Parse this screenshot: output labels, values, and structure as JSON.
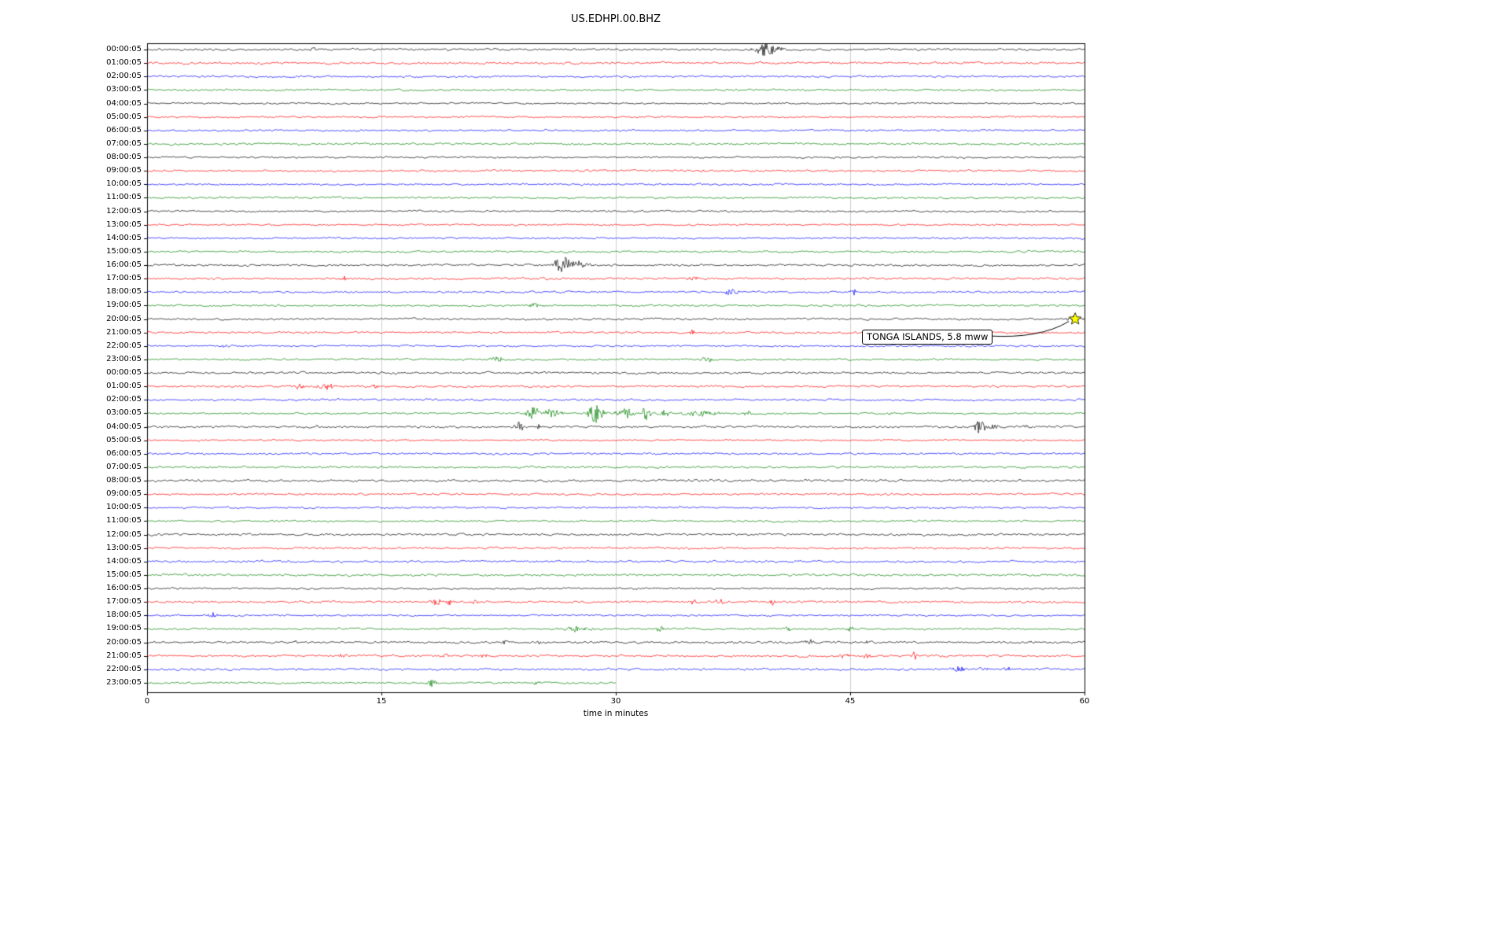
{
  "chart_data": {
    "type": "line",
    "subtype": "seismogram-dayplot",
    "title": "US.EDHPI.00.BHZ",
    "xlabel": "time in minutes",
    "x_range": [
      0,
      60
    ],
    "x_ticks": [
      0,
      15,
      30,
      45,
      60
    ],
    "grid": true,
    "events_format": "[minute, peak_amplitude_px, duration_minutes]",
    "trace_colors": {
      "black": "#000000",
      "red": "#ff0000",
      "blue": "#0000ff",
      "green": "#008000"
    },
    "annotation": {
      "text": "TONGA ISLANDS, 5.8 mww",
      "row_index": 20,
      "row_label": "20:00:05",
      "minute": 59.4,
      "marker": "star",
      "marker_color": "#ffff00"
    },
    "rows": [
      {
        "label": "00:00:05",
        "color": "black",
        "events": [
          [
            10.6,
            5,
            0.25
          ],
          [
            39.6,
            9,
            0.9
          ],
          [
            40.5,
            4,
            0.4
          ]
        ]
      },
      {
        "label": "01:00:05",
        "color": "red",
        "events": []
      },
      {
        "label": "02:00:05",
        "color": "blue",
        "events": []
      },
      {
        "label": "03:00:05",
        "color": "green",
        "events": []
      },
      {
        "label": "04:00:05",
        "color": "black",
        "events": []
      },
      {
        "label": "05:00:05",
        "color": "red",
        "events": []
      },
      {
        "label": "06:00:05",
        "color": "blue",
        "events": []
      },
      {
        "label": "07:00:05",
        "color": "green",
        "events": []
      },
      {
        "label": "08:00:05",
        "color": "black",
        "events": []
      },
      {
        "label": "09:00:05",
        "color": "red",
        "events": [
          [
            35.5,
            2,
            0.2
          ]
        ]
      },
      {
        "label": "10:00:05",
        "color": "blue",
        "events": []
      },
      {
        "label": "11:00:05",
        "color": "green",
        "events": []
      },
      {
        "label": "12:00:05",
        "color": "black",
        "events": []
      },
      {
        "label": "13:00:05",
        "color": "red",
        "events": []
      },
      {
        "label": "14:00:05",
        "color": "blue",
        "events": []
      },
      {
        "label": "15:00:05",
        "color": "green",
        "events": []
      },
      {
        "label": "16:00:05",
        "color": "black",
        "events": [
          [
            26.6,
            11,
            0.7
          ],
          [
            27.6,
            5,
            0.9
          ]
        ]
      },
      {
        "label": "17:00:05",
        "color": "red",
        "events": [
          [
            12.6,
            4,
            0.2
          ],
          [
            35.0,
            2.5,
            0.6
          ]
        ]
      },
      {
        "label": "18:00:05",
        "color": "blue",
        "events": [
          [
            37.4,
            4,
            0.6
          ],
          [
            45.2,
            7,
            0.12
          ]
        ]
      },
      {
        "label": "19:00:05",
        "color": "green",
        "events": [
          [
            24.8,
            3,
            0.7
          ]
        ]
      },
      {
        "label": "20:00:05",
        "color": "black",
        "events": [
          [
            59.3,
            4,
            0.6
          ]
        ]
      },
      {
        "label": "21:00:05",
        "color": "red",
        "events": [
          [
            28.5,
            3.5,
            0.25
          ],
          [
            34.9,
            3,
            0.25
          ]
        ]
      },
      {
        "label": "22:00:05",
        "color": "blue",
        "events": [
          [
            5.0,
            2.5,
            0.4
          ]
        ]
      },
      {
        "label": "23:00:05",
        "color": "green",
        "events": [
          [
            22.3,
            3.5,
            0.7
          ],
          [
            35.9,
            4,
            0.6
          ]
        ]
      },
      {
        "label": "00:00:05",
        "color": "black",
        "events": [
          [
            16.0,
            2,
            0.3
          ]
        ]
      },
      {
        "label": "01:00:05",
        "color": "red",
        "events": [
          [
            9.8,
            4,
            0.5
          ],
          [
            11.4,
            4.5,
            0.7
          ],
          [
            14.6,
            2.5,
            0.3
          ]
        ]
      },
      {
        "label": "02:00:05",
        "color": "blue",
        "events": []
      },
      {
        "label": "03:00:05",
        "color": "green",
        "events": [
          [
            24.7,
            9,
            0.6
          ],
          [
            25.9,
            6,
            0.8
          ],
          [
            28.7,
            12,
            0.7
          ],
          [
            30.6,
            7,
            0.8
          ],
          [
            31.9,
            8,
            0.5
          ],
          [
            33.1,
            5,
            0.5
          ],
          [
            35.5,
            3,
            1.5
          ],
          [
            38.4,
            3,
            0.4
          ],
          [
            47.6,
            2.5,
            0.4
          ]
        ]
      },
      {
        "label": "04:00:05",
        "color": "black",
        "events": [
          [
            10.8,
            2.5,
            0.2
          ],
          [
            23.8,
            6,
            0.45
          ],
          [
            25.1,
            3,
            0.3
          ],
          [
            53.3,
            9,
            0.5
          ],
          [
            54.2,
            4,
            0.4
          ],
          [
            56.2,
            2.5,
            0.3
          ]
        ]
      },
      {
        "label": "05:00:05",
        "color": "red",
        "events": []
      },
      {
        "label": "06:00:05",
        "color": "blue",
        "events": []
      },
      {
        "label": "07:00:05",
        "color": "green",
        "events": []
      },
      {
        "label": "08:00:05",
        "color": "black",
        "events": []
      },
      {
        "label": "09:00:05",
        "color": "red",
        "events": []
      },
      {
        "label": "10:00:05",
        "color": "blue",
        "events": []
      },
      {
        "label": "11:00:05",
        "color": "green",
        "events": []
      },
      {
        "label": "12:00:05",
        "color": "black",
        "events": []
      },
      {
        "label": "13:00:05",
        "color": "red",
        "events": []
      },
      {
        "label": "14:00:05",
        "color": "blue",
        "events": []
      },
      {
        "label": "15:00:05",
        "color": "green",
        "events": []
      },
      {
        "label": "16:00:05",
        "color": "black",
        "events": []
      },
      {
        "label": "17:00:05",
        "color": "red",
        "events": [
          [
            18.5,
            6,
            0.4
          ],
          [
            19.4,
            4,
            0.3
          ],
          [
            21.0,
            3,
            0.25
          ],
          [
            35.0,
            3.5,
            0.35
          ],
          [
            36.6,
            4,
            0.35
          ],
          [
            40.0,
            3.5,
            0.3
          ]
        ]
      },
      {
        "label": "18:00:05",
        "color": "blue",
        "events": [
          [
            4.2,
            3.5,
            0.45
          ]
        ]
      },
      {
        "label": "19:00:05",
        "color": "green",
        "events": [
          [
            27.5,
            3.5,
            1.3
          ],
          [
            32.8,
            4.5,
            0.35
          ],
          [
            41.0,
            3,
            0.3
          ],
          [
            45.0,
            3,
            0.3
          ]
        ]
      },
      {
        "label": "20:00:05",
        "color": "black",
        "events": [
          [
            9.5,
            3,
            0.15
          ],
          [
            22.9,
            3.5,
            0.2
          ],
          [
            25.1,
            3.5,
            0.15
          ],
          [
            42.4,
            3,
            0.5
          ],
          [
            46.0,
            2.5,
            0.3
          ],
          [
            56.6,
            2.5,
            0.3
          ]
        ]
      },
      {
        "label": "21:00:05",
        "color": "red",
        "events": [
          [
            12.5,
            3,
            0.35
          ],
          [
            19.0,
            3,
            0.5
          ],
          [
            21.6,
            3.5,
            0.35
          ],
          [
            44.6,
            3.5,
            0.5
          ],
          [
            46.1,
            3,
            0.35
          ],
          [
            49.1,
            6,
            0.15
          ]
        ]
      },
      {
        "label": "22:00:05",
        "color": "blue",
        "events": [
          [
            51.9,
            4,
            0.5
          ],
          [
            53.6,
            3.5,
            0.35
          ],
          [
            55.1,
            3,
            0.3
          ]
        ]
      },
      {
        "label": "23:00:05",
        "color": "green",
        "events": [
          [
            18.2,
            5,
            0.4
          ],
          [
            24.9,
            3,
            0.35
          ]
        ],
        "end_minute": 30
      }
    ]
  }
}
